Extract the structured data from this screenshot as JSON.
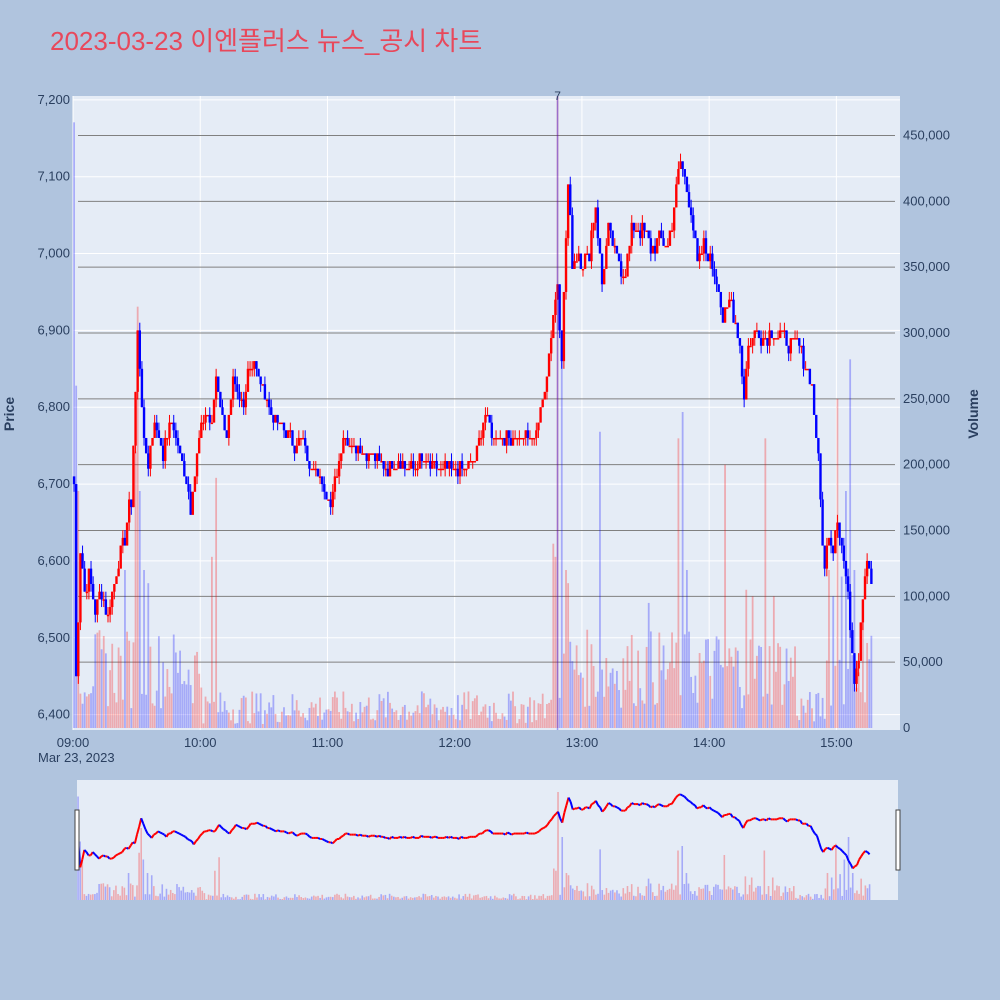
{
  "chart_data": {
    "type": "candlestick",
    "title": "2023-03-23 이엔플러스 뉴스_공시 차트",
    "title_color": "#e8485b",
    "y_title": "Price",
    "y2_title": "Volume",
    "date_label": "Mar 23, 2023",
    "price_ylim": [
      6380,
      7205
    ],
    "price_ticks": [
      "6,400",
      "6,500",
      "6,600",
      "6,700",
      "6,800",
      "6,900",
      "7,000",
      "7,100",
      "7,200"
    ],
    "volume_ylim": [
      0,
      480000
    ],
    "volume_ticks": [
      "0",
      "50,000",
      "100,000",
      "150,000",
      "200,000",
      "250,000",
      "300,000",
      "350,000",
      "400,000",
      "450,000"
    ],
    "x_ticks": [
      "09:00",
      "10:00",
      "11:00",
      "12:00",
      "13:00",
      "14:00",
      "15:00"
    ],
    "x_range_minutes": [
      540,
      930
    ],
    "news_marker": {
      "time": "12:48",
      "label": "7"
    },
    "colors": {
      "up": "#ff0000",
      "down": "#0000ff",
      "plot_bg": "#e5ecf6",
      "page_bg": "#b0c4de",
      "grid": "#ffffff",
      "hline": "#808080"
    },
    "price_keypoints": [
      [
        "09:00",
        6700
      ],
      [
        "09:01",
        6450
      ],
      [
        "09:03",
        6620
      ],
      [
        "09:05",
        6560
      ],
      [
        "09:07",
        6580
      ],
      [
        "09:10",
        6540
      ],
      [
        "09:13",
        6560
      ],
      [
        "09:16",
        6530
      ],
      [
        "09:20",
        6590
      ],
      [
        "09:24",
        6630
      ],
      [
        "09:27",
        6680
      ],
      [
        "09:29",
        6820
      ],
      [
        "09:30",
        6900
      ],
      [
        "09:31",
        6860
      ],
      [
        "09:33",
        6750
      ],
      [
        "09:35",
        6730
      ],
      [
        "09:38",
        6780
      ],
      [
        "09:42",
        6740
      ],
      [
        "09:46",
        6780
      ],
      [
        "09:48",
        6760
      ],
      [
        "09:52",
        6720
      ],
      [
        "09:55",
        6670
      ],
      [
        "09:59",
        6760
      ],
      [
        "10:02",
        6790
      ],
      [
        "10:05",
        6780
      ],
      [
        "10:07",
        6840
      ],
      [
        "10:09",
        6800
      ],
      [
        "10:12",
        6760
      ],
      [
        "10:15",
        6830
      ],
      [
        "10:18",
        6810
      ],
      [
        "10:20",
        6800
      ],
      [
        "10:22",
        6850
      ],
      [
        "10:25",
        6860
      ],
      [
        "10:28",
        6830
      ],
      [
        "10:32",
        6800
      ],
      [
        "10:36",
        6780
      ],
      [
        "10:40",
        6770
      ],
      [
        "10:44",
        6750
      ],
      [
        "10:48",
        6760
      ],
      [
        "10:51",
        6720
      ],
      [
        "10:54",
        6730
      ],
      [
        "10:58",
        6690
      ],
      [
        "11:01",
        6680
      ],
      [
        "11:04",
        6720
      ],
      [
        "11:07",
        6760
      ],
      [
        "11:12",
        6750
      ],
      [
        "11:18",
        6740
      ],
      [
        "11:24",
        6730
      ],
      [
        "11:28",
        6720
      ],
      [
        "11:33",
        6730
      ],
      [
        "11:38",
        6720
      ],
      [
        "11:43",
        6730
      ],
      [
        "11:50",
        6720
      ],
      [
        "11:57",
        6720
      ],
      [
        "12:04",
        6720
      ],
      [
        "12:09",
        6730
      ],
      [
        "12:14",
        6790
      ],
      [
        "12:18",
        6760
      ],
      [
        "12:24",
        6760
      ],
      [
        "12:30",
        6760
      ],
      [
        "12:36",
        6760
      ],
      [
        "12:40",
        6790
      ],
      [
        "12:43",
        6840
      ],
      [
        "12:46",
        6920
      ],
      [
        "12:48",
        6960
      ],
      [
        "12:50",
        6870
      ],
      [
        "12:53",
        7090
      ],
      [
        "12:55",
        6990
      ],
      [
        "12:58",
        7000
      ],
      [
        "13:02",
        6990
      ],
      [
        "13:06",
        7060
      ],
      [
        "13:09",
        6960
      ],
      [
        "13:12",
        7030
      ],
      [
        "13:16",
        6990
      ],
      [
        "13:20",
        6980
      ],
      [
        "13:24",
        7040
      ],
      [
        "13:28",
        7030
      ],
      [
        "13:32",
        7010
      ],
      [
        "13:36",
        7020
      ],
      [
        "13:40",
        7010
      ],
      [
        "13:44",
        7080
      ],
      [
        "13:46",
        7120
      ],
      [
        "13:48",
        7100
      ],
      [
        "13:51",
        7060
      ],
      [
        "13:54",
        6980
      ],
      [
        "13:57",
        7010
      ],
      [
        "14:00",
        6990
      ],
      [
        "14:04",
        6960
      ],
      [
        "14:06",
        6910
      ],
      [
        "14:10",
        6940
      ],
      [
        "14:14",
        6880
      ],
      [
        "14:16",
        6820
      ],
      [
        "14:18",
        6880
      ],
      [
        "14:22",
        6900
      ],
      [
        "14:26",
        6890
      ],
      [
        "14:30",
        6900
      ],
      [
        "14:34",
        6890
      ],
      [
        "14:38",
        6880
      ],
      [
        "14:42",
        6880
      ],
      [
        "14:45",
        6860
      ],
      [
        "14:48",
        6830
      ],
      [
        "14:51",
        6730
      ],
      [
        "14:54",
        6580
      ],
      [
        "14:56",
        6640
      ],
      [
        "14:58",
        6620
      ],
      [
        "15:00",
        6660
      ],
      [
        "15:02",
        6620
      ],
      [
        "15:04",
        6580
      ],
      [
        "15:06",
        6520
      ],
      [
        "15:08",
        6450
      ],
      [
        "15:10",
        6480
      ],
      [
        "15:12",
        6560
      ],
      [
        "15:14",
        6610
      ],
      [
        "15:16",
        6580
      ]
    ],
    "volume_spikes": [
      [
        "09:00",
        460000
      ],
      [
        "09:01",
        260000
      ],
      [
        "09:02",
        180000
      ],
      [
        "09:24",
        120000
      ],
      [
        "09:29",
        210000
      ],
      [
        "09:30",
        320000
      ],
      [
        "09:31",
        180000
      ],
      [
        "09:33",
        120000
      ],
      [
        "09:35",
        110000
      ],
      [
        "10:05",
        130000
      ],
      [
        "10:07",
        190000
      ],
      [
        "12:46",
        140000
      ],
      [
        "12:47",
        130000
      ],
      [
        "12:48",
        480000
      ],
      [
        "12:50",
        280000
      ],
      [
        "12:52",
        120000
      ],
      [
        "12:53",
        110000
      ],
      [
        "13:08",
        225000
      ],
      [
        "13:31",
        95000
      ],
      [
        "13:45",
        220000
      ],
      [
        "13:47",
        240000
      ],
      [
        "13:49",
        120000
      ],
      [
        "14:07",
        200000
      ],
      [
        "14:17",
        105000
      ],
      [
        "14:20",
        100000
      ],
      [
        "14:26",
        220000
      ],
      [
        "14:30",
        100000
      ],
      [
        "14:56",
        120000
      ],
      [
        "14:58",
        100000
      ],
      [
        "15:00",
        250000
      ],
      [
        "15:02",
        115000
      ],
      [
        "15:04",
        180000
      ],
      [
        "15:06",
        280000
      ],
      [
        "15:08",
        120000
      ],
      [
        "15:12",
        95000
      ]
    ]
  }
}
